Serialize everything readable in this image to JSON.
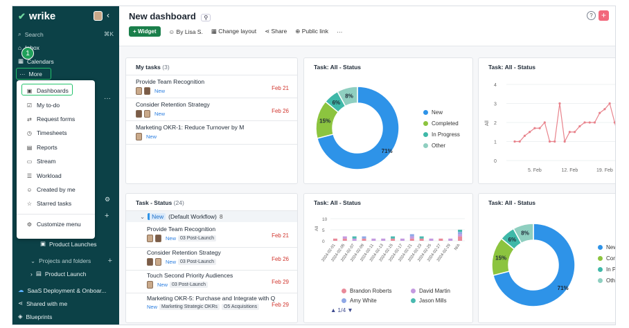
{
  "sidebar": {
    "logo": "wrike",
    "search_label": "Search",
    "search_shortcut": "⌘K",
    "inbox": "Inbox",
    "calendars": "Calendars",
    "more": "More",
    "step_badge": "1",
    "product_launches": "Product Launches",
    "projects_and_folders": "Projects and folders",
    "product_launch": "Product Launch",
    "saas": "SaaS Deployment & Onboar...",
    "shared": "Shared with me",
    "blueprints": "Blueprints"
  },
  "menu": {
    "items": [
      "Dashboards",
      "My to-do",
      "Request forms",
      "Timesheets",
      "Reports",
      "Stream",
      "Workload",
      "Created by me",
      "Starred tasks"
    ],
    "customize": "Customize menu"
  },
  "header": {
    "title": "New dashboard",
    "widget": "Widget",
    "by": "By Lisa S.",
    "change_layout": "Change layout",
    "share": "Share",
    "public_link": "Public link",
    "more": "···"
  },
  "my_tasks": {
    "title": "My tasks",
    "count": "(3)",
    "tasks": [
      {
        "name": "Provide Team Recognition",
        "status": "New",
        "date": "Feb 21"
      },
      {
        "name": "Consider Retention Strategy",
        "status": "New",
        "date": "Feb 26"
      },
      {
        "name": "Marketing OKR-1: Reduce Turnover by M",
        "status": "New",
        "date": ""
      }
    ]
  },
  "task_status": {
    "title": "Task - Status",
    "count": "(24)",
    "group_status": "New",
    "group_name": "(Default Workflow)",
    "group_count": "8",
    "tasks": [
      {
        "name": "Provide Team Recognition",
        "status": "New",
        "tag": "03 Post-Launch",
        "date": "Feb 21"
      },
      {
        "name": "Consider Retention Strategy",
        "status": "New",
        "tag": "03 Post-Launch",
        "date": "Feb 26"
      },
      {
        "name": "Touch Second Priority Audiences",
        "status": "New",
        "tag": "03 Post-Launch",
        "date": "Feb 29"
      },
      {
        "name": "Marketing OKR-5: Purchase and Integrate with Q",
        "status": "New",
        "tag": "Marketing Strategic OKRs",
        "tag2": "O5 Acquisitions",
        "date": "Feb 29"
      }
    ]
  },
  "donut1": {
    "title": "Task: All - Status",
    "legend": [
      "New",
      "Completed",
      "In Progress",
      "Other"
    ],
    "colors": [
      "#2e93e8",
      "#8cc43f",
      "#3fb8a8",
      "#8fcfc0"
    ],
    "labels": [
      "71%",
      "15%",
      "6%",
      "8%"
    ]
  },
  "line_chart": {
    "title": "Task: All - Status",
    "ylabel": "All",
    "yticks": [
      "4",
      "3",
      "2",
      "1",
      "0"
    ],
    "xticks": [
      "5. Feb",
      "12. Feb",
      "19. Feb"
    ]
  },
  "bar_chart": {
    "title": "Task: All - Status",
    "ylabel": "All",
    "yticks": [
      "10",
      "5",
      "0"
    ],
    "xticks": [
      "2024-02-01",
      "2024-02-05",
      "2024-02-07",
      "2024-02-09",
      "2024-02-11",
      "2024-02-13",
      "2024-02-15",
      "2024-02-17",
      "2024-02-21",
      "2024-02-23",
      "2024-02-25",
      "2024-02-27",
      "2024-02-29",
      "N/A"
    ],
    "legend": [
      "Brandon Roberts",
      "David Martin",
      "Amy White",
      "Jason Mills"
    ],
    "legend_colors": [
      "#e98a9a",
      "#c49ae0",
      "#8fa8e6",
      "#49b9b0"
    ],
    "pager": "1/4"
  },
  "donut2": {
    "title": "Task: All - Status",
    "legend": [
      "New",
      "Com",
      "In P",
      "Othe"
    ],
    "labels": [
      "71%",
      "15%",
      "6%",
      "8%"
    ]
  },
  "chart_data": [
    {
      "type": "pie",
      "title": "Task: All - Status",
      "categories": [
        "New",
        "Completed",
        "In Progress",
        "Other"
      ],
      "values": [
        71,
        15,
        6,
        8
      ]
    },
    {
      "type": "line",
      "title": "Task: All - Status",
      "ylabel": "All",
      "ylim": [
        0,
        4
      ],
      "x": [
        "Feb 1",
        "Feb 2",
        "Feb 3",
        "Feb 4",
        "Feb 5",
        "Feb 6",
        "Feb 7",
        "Feb 8",
        "Feb 9",
        "Feb 10",
        "Feb 11",
        "Feb 12",
        "Feb 13",
        "Feb 14",
        "Feb 15",
        "Feb 16",
        "Feb 17",
        "Feb 18",
        "Feb 19",
        "Feb 20",
        "Feb 21",
        "Feb 22",
        "Feb 23",
        "Feb 24"
      ],
      "values": [
        1,
        1,
        1.3,
        1.5,
        1.7,
        1.7,
        2,
        1,
        1,
        3,
        1,
        1.5,
        1.5,
        1.8,
        2,
        2,
        2,
        2.5,
        2.7,
        3,
        2,
        1,
        1,
        1
      ]
    },
    {
      "type": "bar",
      "title": "Task: All - Status",
      "ylabel": "All",
      "ylim": [
        0,
        10
      ],
      "categories": [
        "2024-02-01",
        "2024-02-05",
        "2024-02-07",
        "2024-02-09",
        "2024-02-11",
        "2024-02-13",
        "2024-02-15",
        "2024-02-17",
        "2024-02-21",
        "2024-02-23",
        "2024-02-25",
        "2024-02-27",
        "2024-02-29",
        "N/A"
      ],
      "series": [
        {
          "name": "Brandon Roberts",
          "values": [
            1,
            1,
            0,
            1,
            0,
            0,
            1,
            0,
            1,
            1,
            0,
            1,
            0,
            2
          ]
        },
        {
          "name": "David Martin",
          "values": [
            0,
            1,
            1,
            0,
            1,
            1,
            0,
            1,
            1,
            0,
            1,
            0,
            1,
            1
          ]
        },
        {
          "name": "Amy White",
          "values": [
            0,
            0,
            0,
            1,
            0,
            0,
            0,
            0,
            1,
            0,
            0,
            0,
            0,
            1
          ]
        },
        {
          "name": "Jason Mills",
          "values": [
            0,
            0,
            1,
            0,
            0,
            0,
            1,
            0,
            0,
            1,
            0,
            0,
            0,
            1
          ]
        }
      ]
    },
    {
      "type": "pie",
      "title": "Task: All - Status",
      "categories": [
        "New",
        "Completed",
        "In Progress",
        "Other"
      ],
      "values": [
        71,
        15,
        6,
        8
      ]
    }
  ]
}
